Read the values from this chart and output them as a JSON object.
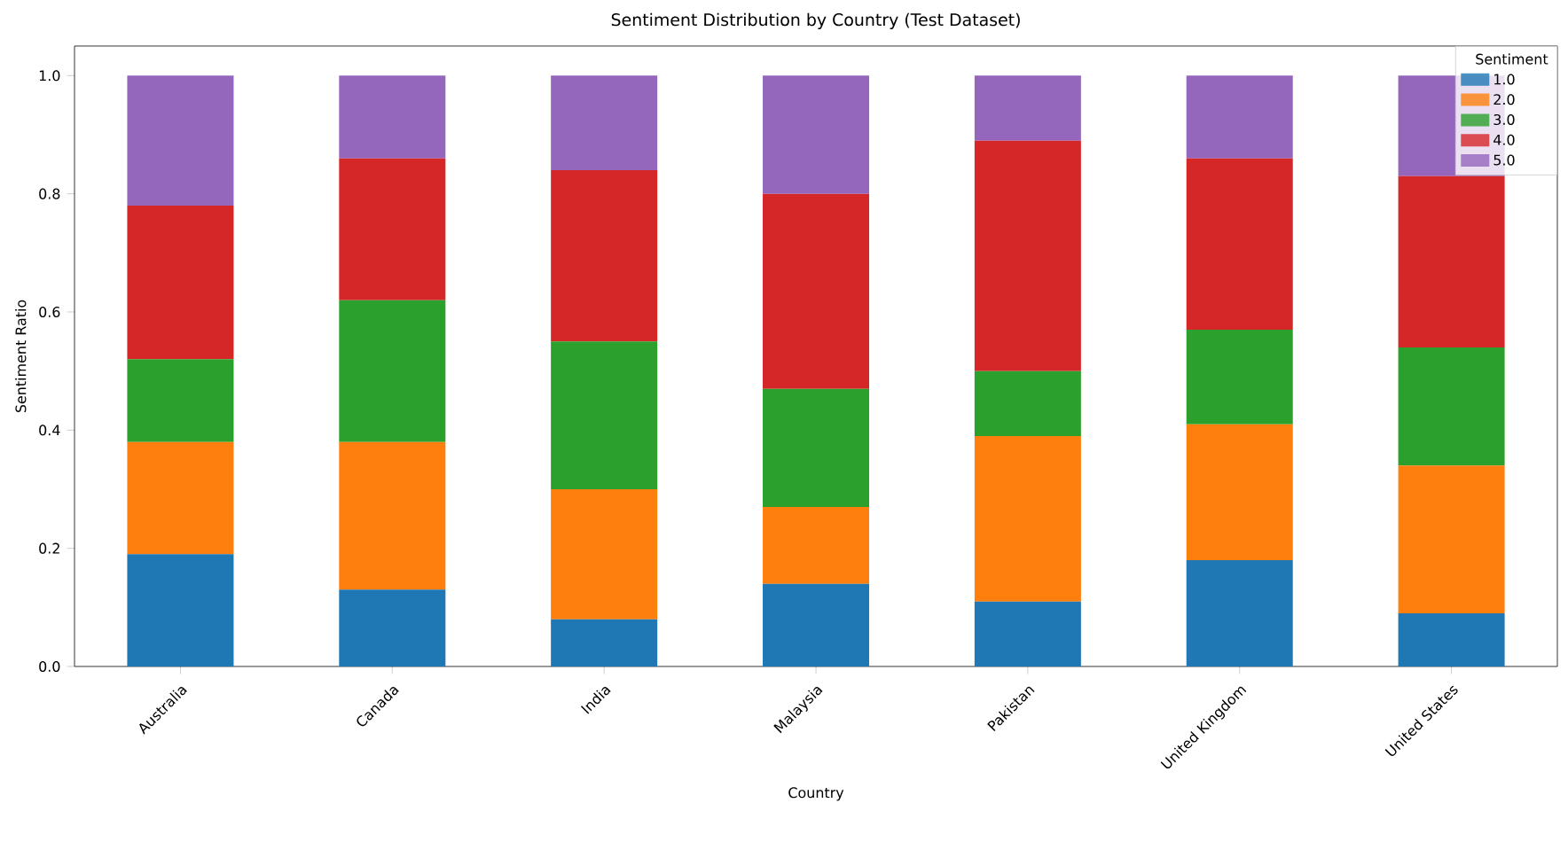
{
  "chart_data": {
    "type": "bar",
    "stacked": true,
    "title": "Sentiment Distribution by Country (Test Dataset)",
    "xlabel": "Country",
    "ylabel": "Sentiment Ratio",
    "legend_title": "Sentiment",
    "legend": "top right",
    "categories": [
      "Australia",
      "Canada",
      "India",
      "Malaysia",
      "Pakistan",
      "United Kingdom",
      "United States"
    ],
    "ylim": [
      0,
      1.05
    ],
    "yticks": [
      {
        "value": 0,
        "label": "0.0"
      },
      {
        "value": 0.2,
        "label": "0.2"
      },
      {
        "value": 0.4,
        "label": "0.4"
      },
      {
        "value": 0.6,
        "label": "0.6"
      },
      {
        "value": 0.8,
        "label": "0.8"
      },
      {
        "value": 1.0,
        "label": "1.0"
      }
    ],
    "series": [
      {
        "name": "1.0",
        "color": "#1f77b4",
        "values": [
          0.19,
          0.13,
          0.08,
          0.14,
          0.11,
          0.18,
          0.09
        ]
      },
      {
        "name": "2.0",
        "color": "#ff7f0e",
        "values": [
          0.19,
          0.25,
          0.22,
          0.13,
          0.28,
          0.23,
          0.25
        ]
      },
      {
        "name": "3.0",
        "color": "#2ca02c",
        "values": [
          0.14,
          0.24,
          0.25,
          0.2,
          0.11,
          0.16,
          0.2
        ]
      },
      {
        "name": "4.0",
        "color": "#d62728",
        "values": [
          0.26,
          0.24,
          0.29,
          0.33,
          0.39,
          0.29,
          0.29
        ]
      },
      {
        "name": "5.0",
        "color": "#9467bd",
        "values": [
          0.22,
          0.14,
          0.16,
          0.2,
          0.11,
          0.14,
          0.17
        ]
      }
    ]
  }
}
